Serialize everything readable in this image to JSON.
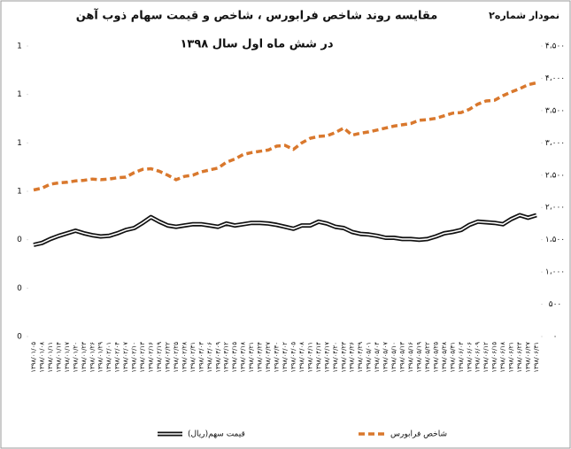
{
  "chart_data": {
    "type": "line",
    "label": "نمودار شماره۲",
    "title": "مقایسه روند شاخص فرابورس ، شاخص و قیمت سهام ذوب آهن",
    "subtitle": "در شش ماه اول سال ۱۳۹۸",
    "categories": [
      "۱۳۹۸/۰۱/۰۵",
      "۱۳۹۸/۰۱/۰۸",
      "۱۳۹۸/۰۱/۱۱",
      "۱۳۹۸/۰۱/۱۴",
      "۱۳۹۸/۰۱/۱۷",
      "۱۳۹۸/۰۱/۲۰",
      "۱۳۹۸/۰۱/۲۳",
      "۱۳۹۸/۰۱/۲۶",
      "۱۳۹۸/۰۱/۲۹",
      "۱۳۹۸/۰۲/۰۱",
      "۱۳۹۸/۰۲/۰۴",
      "۱۳۹۸/۰۲/۰۷",
      "۱۳۹۸/۰۲/۱۰",
      "۱۳۹۸/۰۲/۱۳",
      "۱۳۹۸/۰۲/۱۶",
      "۱۳۹۸/۰۲/۱۹",
      "۱۳۹۸/۰۲/۲۲",
      "۱۳۹۸/۰۲/۲۵",
      "۱۳۹۸/۰۲/۲۸",
      "۱۳۹۸/۰۲/۳۱",
      "۱۳۹۸/۰۳/۰۳",
      "۱۳۹۸/۰۳/۰۶",
      "۱۳۹۸/۰۳/۰۹",
      "۱۳۹۸/۰۳/۱۲",
      "۱۳۹۸/۰۳/۱۵",
      "۱۳۹۸/۰۳/۱۸",
      "۱۳۹۸/۰۳/۲۱",
      "۱۳۹۸/۰۳/۲۴",
      "۱۳۹۸/۰۳/۲۷",
      "۱۳۹۸/۰۳/۳۰",
      "۱۳۹۸/۰۴/۰۲",
      "۱۳۹۸/۰۴/۰۵",
      "۱۳۹۸/۰۴/۰۸",
      "۱۳۹۸/۰۴/۱۱",
      "۱۳۹۸/۰۴/۱۴",
      "۱۳۹۸/۰۴/۱۷",
      "۱۳۹۸/۰۴/۲۰",
      "۱۳۹۸/۰۴/۲۳",
      "۱۳۹۸/۰۴/۲۶",
      "۱۳۹۸/۰۴/۲۹",
      "۱۳۹۸/۰۵/۰۱",
      "۱۳۹۸/۰۵/۰۴",
      "۱۳۹۸/۰۵/۰۷",
      "۱۳۹۸/۰۵/۱۰",
      "۱۳۹۸/۰۵/۱۳",
      "۱۳۹۸/۰۵/۱۶",
      "۱۳۹۸/۰۵/۱۹",
      "۱۳۹۸/۰۵/۲۲",
      "۱۳۹۸/۰۵/۲۵",
      "۱۳۹۸/۰۵/۲۸",
      "۱۳۹۸/۰۵/۳۱",
      "۱۳۹۸/۰۶/۰۳",
      "۱۳۹۸/۰۶/۰۶",
      "۱۳۹۸/۰۶/۰۹",
      "۱۳۹۸/۰۶/۱۲",
      "۱۳۹۸/۰۶/۱۵",
      "۱۳۹۸/۰۶/۱۸",
      "۱۳۹۸/۰۶/۲۱",
      "۱۳۹۸/۰۶/۲۴",
      "۱۳۹۸/۰۶/۲۷",
      "۱۳۹۸/۰۶/۳۱"
    ],
    "series": [
      {
        "name": "قیمت سهم(ریال)",
        "color": "#111111",
        "axis": "y2",
        "values": [
          1420,
          1450,
          1510,
          1560,
          1600,
          1640,
          1600,
          1570,
          1550,
          1560,
          1600,
          1650,
          1680,
          1760,
          1850,
          1780,
          1720,
          1700,
          1720,
          1740,
          1740,
          1720,
          1700,
          1750,
          1720,
          1740,
          1760,
          1760,
          1750,
          1730,
          1700,
          1670,
          1720,
          1720,
          1780,
          1750,
          1700,
          1680,
          1620,
          1590,
          1580,
          1560,
          1530,
          1530,
          1510,
          1510,
          1500,
          1510,
          1550,
          1600,
          1620,
          1650,
          1730,
          1780,
          1770,
          1760,
          1740,
          1820,
          1880,
          1840,
          1880
        ]
      },
      {
        "name": "شاخص فرابورس",
        "color": "#d9782d",
        "axis": "y2",
        "values": [
          2270,
          2300,
          2360,
          2380,
          2390,
          2410,
          2420,
          2440,
          2430,
          2440,
          2460,
          2470,
          2540,
          2590,
          2600,
          2560,
          2500,
          2430,
          2480,
          2500,
          2550,
          2580,
          2610,
          2700,
          2750,
          2820,
          2850,
          2870,
          2890,
          2950,
          2960,
          2900,
          3000,
          3070,
          3100,
          3110,
          3160,
          3230,
          3120,
          3150,
          3170,
          3200,
          3230,
          3260,
          3280,
          3300,
          3350,
          3360,
          3380,
          3420,
          3460,
          3470,
          3520,
          3600,
          3650,
          3660,
          3730,
          3790,
          3840,
          3900,
          3930
        ]
      }
    ],
    "ylim": [
      0,
      1.2
    ],
    "yticks": [
      {
        "value": 0,
        "label": "0"
      },
      {
        "value": 0.2,
        "label": "0"
      },
      {
        "value": 0.4,
        "label": "0"
      },
      {
        "value": 0.6,
        "label": "1"
      },
      {
        "value": 0.8,
        "label": "1"
      },
      {
        "value": 1.0,
        "label": "1"
      },
      {
        "value": 1.2,
        "label": "1"
      }
    ],
    "y2lim": [
      0,
      4500
    ],
    "y2ticks": [
      {
        "value": 0,
        "label": "۰"
      },
      {
        "value": 500,
        "label": "۵۰۰"
      },
      {
        "value": 1000,
        "label": "۱،۰۰۰"
      },
      {
        "value": 1500,
        "label": "۱،۵۰۰"
      },
      {
        "value": 2000,
        "label": "۲،۰۰۰"
      },
      {
        "value": 2500,
        "label": "۲،۵۰۰"
      },
      {
        "value": 3000,
        "label": "۳،۰۰۰"
      },
      {
        "value": 3500,
        "label": "۳،۵۰۰"
      },
      {
        "value": 4000,
        "label": "۴،۰۰۰"
      },
      {
        "value": 4500,
        "label": "۴،۵۰۰"
      }
    ],
    "grid": false
  }
}
